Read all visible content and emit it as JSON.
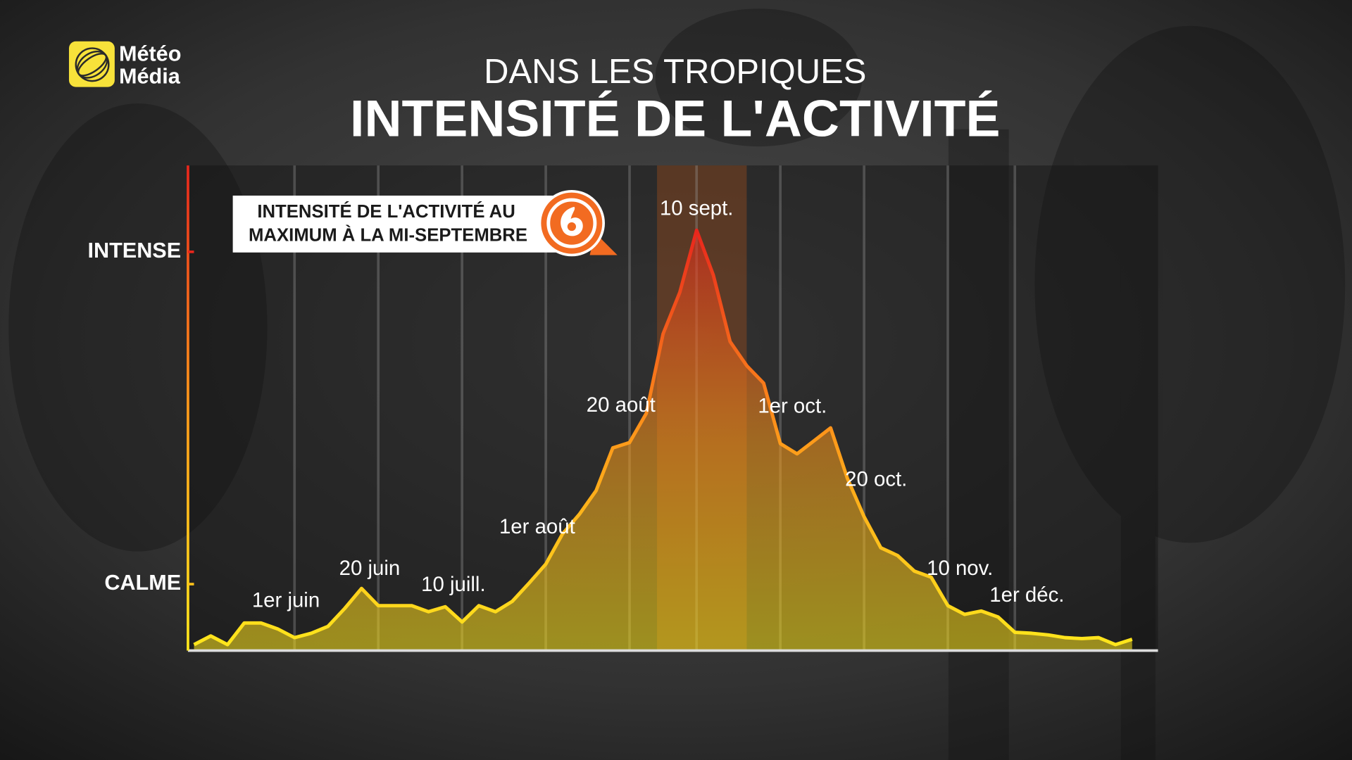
{
  "logo": {
    "lines": [
      "Météo",
      "Média"
    ]
  },
  "chart_data": {
    "type": "area",
    "subtitle": "DANS LES TROPIQUES",
    "title": "INTENSITÉ DE L'ACTIVITÉ",
    "annotation": [
      "INTENSITÉ DE L'ACTIVITÉ AU",
      "MAXIMUM À LA MI-SEPTEMBRE"
    ],
    "categories": [
      null,
      null,
      null,
      null,
      null,
      null,
      "1er juin",
      null,
      null,
      null,
      null,
      "20 juin",
      null,
      null,
      null,
      null,
      "10 juill.",
      null,
      null,
      null,
      null,
      "1er août",
      null,
      null,
      null,
      null,
      "20 août",
      null,
      null,
      null,
      "10 sept.",
      null,
      null,
      null,
      null,
      "1er oct.",
      null,
      null,
      null,
      null,
      "20 oct.",
      null,
      null,
      null,
      null,
      "10 nov.",
      null,
      null,
      null,
      "1er déc.",
      null,
      null,
      null,
      null,
      null,
      null,
      null
    ],
    "values": [
      1.8,
      4.4,
      1.8,
      8.3,
      8.3,
      6.5,
      3.9,
      5.2,
      7.3,
      12.7,
      18.7,
      13.5,
      13.5,
      13.5,
      11.7,
      13.2,
      8.6,
      13.5,
      11.7,
      14.8,
      20.3,
      26.0,
      35.1,
      41.0,
      48.1,
      61.0,
      62.6,
      71.4,
      95.3,
      107.8,
      126.5,
      113.0,
      93.0,
      85.7,
      80.5,
      62.3,
      59.2,
      63.1,
      67.0,
      51.9,
      40.3,
      30.9,
      28.6,
      23.9,
      22.1,
      13.5,
      10.9,
      11.9,
      10.1,
      5.5,
      5.2,
      4.7,
      3.9,
      3.6,
      3.9,
      1.8,
      3.4
    ],
    "ylim": [
      0,
      146
    ],
    "yticks": [
      {
        "value": 20,
        "label": "CALME"
      },
      {
        "value": 120,
        "label": "INTENSE"
      }
    ],
    "gradient": [
      "#ffe81c",
      "#ff9a1a",
      "#e8261c"
    ],
    "grid": true
  }
}
